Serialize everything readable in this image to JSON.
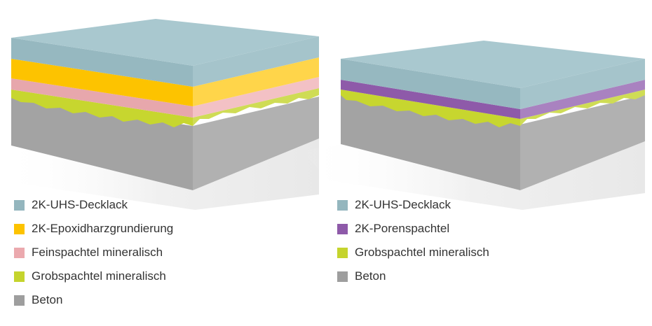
{
  "colors": {
    "decklack": "#a7c7cf",
    "epoxid": "#fdc300",
    "feinspachtel": "#eba9ae",
    "grobspachtel": "#c5d42d",
    "porenspachtel": "#8e5aa9",
    "beton": "#9e9e9e"
  },
  "left_diagram": {
    "legend": [
      {
        "label": "2K-UHS-Decklack",
        "color": "#94b6be"
      },
      {
        "label": "2K-Epoxidharzgrundierung",
        "color": "#fdc300"
      },
      {
        "label": "Feinspachtel mineralisch",
        "color": "#eba9ae"
      },
      {
        "label": "Grobspachtel mineralisch",
        "color": "#c5d42d"
      },
      {
        "label": "Beton",
        "color": "#9e9e9e"
      }
    ]
  },
  "right_diagram": {
    "legend": [
      {
        "label": "2K-UHS-Decklack",
        "color": "#94b6be"
      },
      {
        "label": "2K-Porenspachtel",
        "color": "#8e5aa9"
      },
      {
        "label": "Grobspachtel mineralisch",
        "color": "#c5d42d"
      },
      {
        "label": "Beton",
        "color": "#9e9e9e"
      }
    ]
  }
}
